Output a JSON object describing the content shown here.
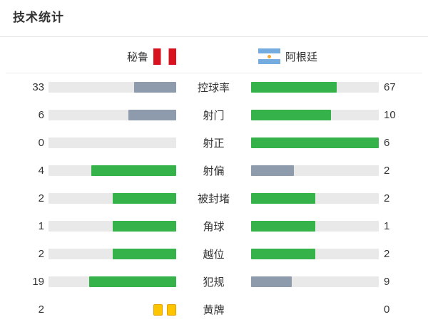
{
  "title": "技术统计",
  "teams": {
    "home": {
      "name": "秘鲁",
      "flag": "peru-flag"
    },
    "away": {
      "name": "阿根廷",
      "flag": "argentina-flag"
    }
  },
  "colors": {
    "winner_bar_green": "#35b24a",
    "loser_bar_slate": "#8d9bac",
    "track_gray": "#e9e9e9",
    "divider": "#e8e8e8",
    "yellow_card_fill": "#fdc400",
    "yellow_card_border": "#e2a100",
    "peru_red": "#d8121f",
    "argentina_blue": "#74acdf",
    "argentina_sun": "#f2a83b"
  },
  "chart_data": {
    "type": "bar",
    "title": "技术统计",
    "categories": [
      "控球率",
      "射门",
      "射正",
      "射偏",
      "被封堵",
      "角球",
      "越位",
      "犯规",
      "黄牌"
    ],
    "series": [
      {
        "name": "秘鲁",
        "values": [
          33,
          6,
          0,
          4,
          2,
          1,
          2,
          19,
          2
        ]
      },
      {
        "name": "阿根廷",
        "values": [
          67,
          10,
          6,
          2,
          2,
          1,
          2,
          9,
          0
        ]
      }
    ],
    "layout": "mirrored horizontal comparison bars; fill fraction = value/(home+away); higher (or tied) value green, lower value slate gray; last row uses yellow card icons instead of bars",
    "legend_position": "top",
    "grid": false
  },
  "rows": [
    {
      "kind": "bar",
      "label": "控球率",
      "home": {
        "value": "33",
        "pct": 33,
        "result": "lose"
      },
      "away": {
        "value": "67",
        "pct": 67,
        "result": "win"
      }
    },
    {
      "kind": "bar",
      "label": "射门",
      "home": {
        "value": "6",
        "pct": 37.5,
        "result": "lose"
      },
      "away": {
        "value": "10",
        "pct": 62.5,
        "result": "win"
      }
    },
    {
      "kind": "bar",
      "label": "射正",
      "home": {
        "value": "0",
        "pct": 0,
        "result": "lose"
      },
      "away": {
        "value": "6",
        "pct": 100,
        "result": "win"
      }
    },
    {
      "kind": "bar",
      "label": "射偏",
      "home": {
        "value": "4",
        "pct": 66.7,
        "result": "win"
      },
      "away": {
        "value": "2",
        "pct": 33.3,
        "result": "lose"
      }
    },
    {
      "kind": "bar",
      "label": "被封堵",
      "home": {
        "value": "2",
        "pct": 50,
        "result": "win"
      },
      "away": {
        "value": "2",
        "pct": 50,
        "result": "win"
      }
    },
    {
      "kind": "bar",
      "label": "角球",
      "home": {
        "value": "1",
        "pct": 50,
        "result": "win"
      },
      "away": {
        "value": "1",
        "pct": 50,
        "result": "win"
      }
    },
    {
      "kind": "bar",
      "label": "越位",
      "home": {
        "value": "2",
        "pct": 50,
        "result": "win"
      },
      "away": {
        "value": "2",
        "pct": 50,
        "result": "win"
      }
    },
    {
      "kind": "bar",
      "label": "犯规",
      "home": {
        "value": "19",
        "pct": 67.9,
        "result": "win"
      },
      "away": {
        "value": "9",
        "pct": 32.1,
        "result": "lose"
      }
    },
    {
      "kind": "cards",
      "label": "黄牌",
      "home": {
        "value": "2",
        "cards": 2
      },
      "away": {
        "value": "0",
        "cards": 0
      }
    }
  ]
}
